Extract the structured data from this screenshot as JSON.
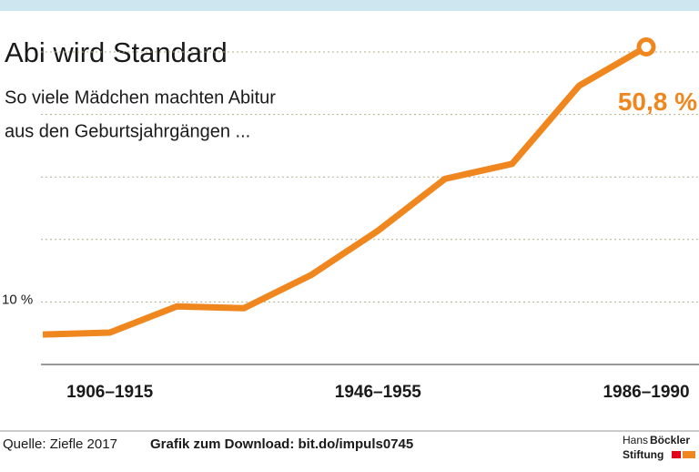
{
  "chart_data": {
    "type": "line",
    "title": "Abi wird Standard",
    "subtitle": [
      "So viele Mädchen machten Abitur",
      "aus den Geburtsjahrgängen ..."
    ],
    "categories": [
      null,
      "1906–1915",
      null,
      null,
      null,
      "1946–1955",
      null,
      null,
      null,
      "1986–1990"
    ],
    "series": [
      {
        "color": "#f0861e",
        "values": [
          4.8,
          5.1,
          9.3,
          9.0,
          14.3,
          21.4,
          29.7,
          32.1,
          44.6,
          50.8
        ],
        "value_labels": [
          null,
          null,
          null,
          null,
          null,
          null,
          null,
          null,
          null,
          "50,8 %"
        ]
      }
    ],
    "ylim": [
      0,
      50
    ],
    "yticks": [
      {
        "value": 10,
        "label": "10 %"
      }
    ],
    "gridlines": [
      10,
      20,
      30,
      40,
      50
    ],
    "grid": true,
    "source": "Quelle: Ziefle 2017",
    "download": "Grafik zum Download: bit.do/impuls0745",
    "logo": [
      "Hans",
      "Böckler",
      "Stiftung"
    ]
  }
}
